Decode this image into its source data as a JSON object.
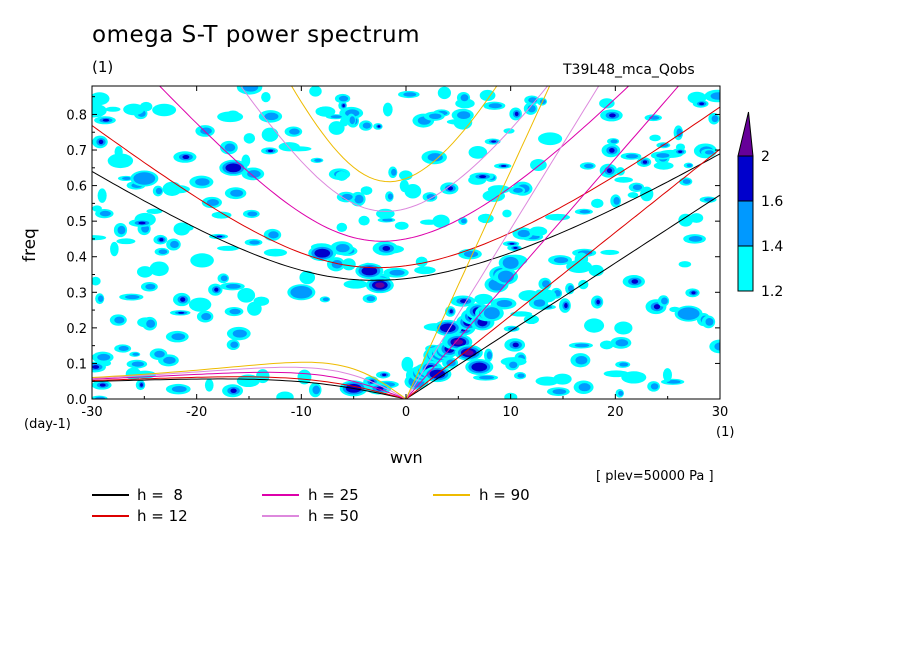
{
  "title": "omega S-T power spectrum",
  "subtitle_left": "(1)",
  "subtitle_right": "T39L48_mca_Qobs",
  "x_label": "wvn",
  "y_label": "freq",
  "x_unit": "(1)",
  "y_unit": "(day-1)",
  "level_note": "[ plev=50000 Pa ]",
  "colors": {
    "c1": "#00ffff",
    "c2": "#0099ff",
    "c3": "#0000cc",
    "c4": "#660099"
  },
  "chart_data": {
    "type": "heatmap",
    "title": "omega S-T power spectrum",
    "xlabel": "wvn",
    "ylabel": "freq",
    "xlim": [
      -30,
      30
    ],
    "ylim": [
      0,
      0.88
    ],
    "xticks": [
      "-30",
      "-20",
      "-10",
      "0",
      "10",
      "20",
      "30"
    ],
    "yticks": [
      "0.0",
      "0.1",
      "0.2",
      "0.3",
      "0.4",
      "0.5",
      "0.6",
      "0.7",
      "0.8"
    ],
    "colorbar_levels": [
      "1.2",
      "1.4",
      "1.6",
      "2"
    ],
    "colorbar_colors": [
      "#00ffff",
      "#0099ff",
      "#0000cc",
      "#660099"
    ],
    "dispersion_curves": [
      {
        "label": "h =  8",
        "color": "#000000"
      },
      {
        "label": "h = 12",
        "color": "#dd0000"
      },
      {
        "label": "h = 25",
        "color": "#dd00aa"
      },
      {
        "label": "h = 50",
        "color": "#dd88dd"
      },
      {
        "label": "h = 90",
        "color": "#eebb00"
      }
    ],
    "hotspots": [
      {
        "x": -2.5,
        "y": 0.32,
        "level": 4
      },
      {
        "x": -3.5,
        "y": 0.36,
        "level": 3
      },
      {
        "x": -8,
        "y": 0.41,
        "level": 3
      },
      {
        "x": -16.5,
        "y": 0.65,
        "level": 3
      },
      {
        "x": 5,
        "y": 0.16,
        "level": 4
      },
      {
        "x": 6,
        "y": 0.13,
        "level": 4
      },
      {
        "x": 4,
        "y": 0.2,
        "level": 3
      },
      {
        "x": 3,
        "y": 0.07,
        "level": 3
      },
      {
        "x": 7,
        "y": 0.09,
        "level": 3
      },
      {
        "x": -5,
        "y": 0.03,
        "level": 3
      },
      {
        "x": -25,
        "y": 0.62,
        "level": 2
      },
      {
        "x": 27,
        "y": 0.24,
        "level": 2
      },
      {
        "x": -10,
        "y": 0.3,
        "level": 2
      }
    ]
  }
}
